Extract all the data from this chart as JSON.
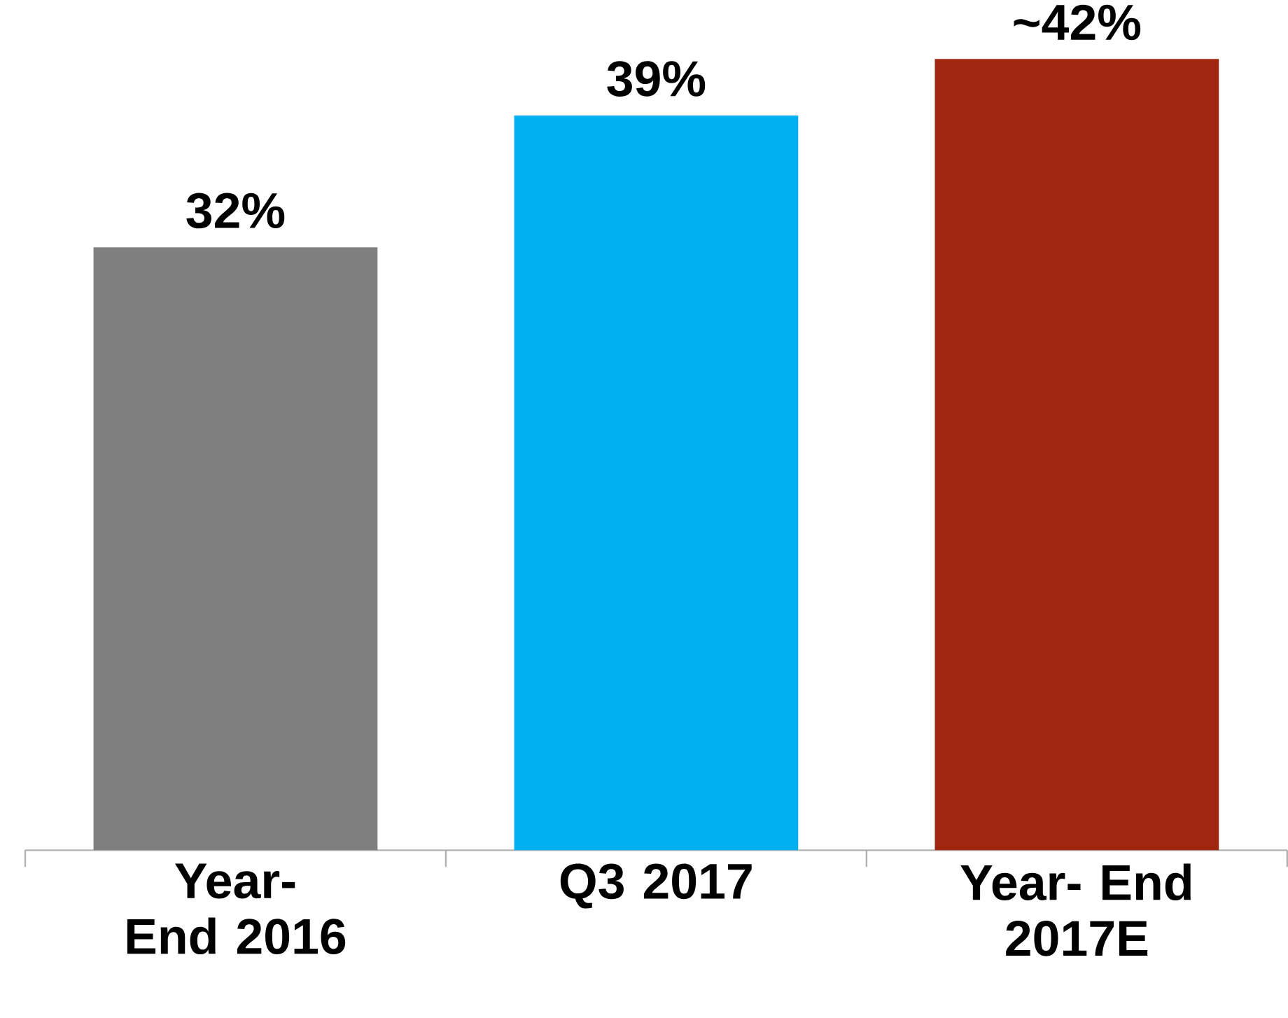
{
  "chart_data": {
    "type": "bar",
    "categories": [
      "Year- End 2016",
      "Q3 2017",
      "Year- End 2017E"
    ],
    "values": [
      32,
      39,
      42
    ],
    "colors": [
      "#7f7f7f",
      "#00b0f0",
      "#a0260f"
    ],
    "value_labels": [
      "32%",
      "39%",
      "~42%"
    ]
  }
}
